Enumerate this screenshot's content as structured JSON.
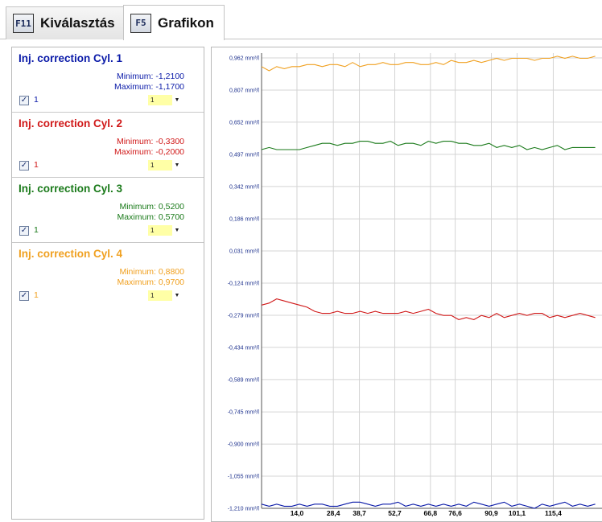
{
  "tabs": [
    {
      "key": "F11",
      "label": "Kiválasztás"
    },
    {
      "key": "F5",
      "label": "Grafikon"
    }
  ],
  "series_panel": [
    {
      "title": "Inj. correction Cyl. 1",
      "min_label": "Minimum: -1,2100",
      "max_label": "Maximum: -1,1700",
      "checked": true,
      "number": "1",
      "select_value": "1",
      "color": "#0a1aa8"
    },
    {
      "title": "Inj. correction Cyl. 2",
      "min_label": "Minimum: -0,3300",
      "max_label": "Maximum: -0,2000",
      "checked": true,
      "number": "1",
      "select_value": "1",
      "color": "#d01818"
    },
    {
      "title": "Inj. correction Cyl. 3",
      "min_label": "Minimum: 0,5200",
      "max_label": "Maximum: 0,5700",
      "checked": true,
      "number": "1",
      "select_value": "1",
      "color": "#1a7a1a"
    },
    {
      "title": "Inj. correction Cyl. 4",
      "min_label": "Minimum: 0,8800",
      "max_label": "Maximum: 0,9700",
      "checked": true,
      "number": "1",
      "select_value": "1",
      "color": "#f0a020"
    }
  ],
  "chart_data": {
    "type": "line",
    "title": "",
    "xlabel": "",
    "ylabel": "",
    "y_tick_labels": [
      "0,962 mm³/l",
      "0,807 mm³/l",
      "0,652 mm³/l",
      "0,497 mm³/l",
      "0,342 mm³/l",
      "0,186 mm³/l",
      "0,031 mm³/l",
      "-0,124 mm³/l",
      "-0,279 mm³/l",
      "-0,434 mm³/l",
      "-0,589 mm³/l",
      "-0,745 mm³/l",
      "-0,900 mm³/l",
      "-1,055 mm³/l",
      "-1,210 mm³/l"
    ],
    "y_ticks": [
      0.962,
      0.807,
      0.652,
      0.497,
      0.342,
      0.186,
      0.031,
      -0.124,
      -0.279,
      -0.434,
      -0.589,
      -0.745,
      -0.9,
      -1.055,
      -1.21
    ],
    "x_tick_labels": [
      "14,0",
      "28,4",
      "38,7",
      "52,7",
      "66,8",
      "76,6",
      "90,9",
      "101,1",
      "115,4"
    ],
    "x_ticks": [
      14.0,
      28.4,
      38.7,
      52.7,
      66.8,
      76.6,
      90.9,
      101.1,
      115.4
    ],
    "xlim": [
      0,
      135
    ],
    "ylim": [
      -1.21,
      0.962
    ],
    "grid": true,
    "series": [
      {
        "color": "#0a1aa8",
        "x": [
          0,
          3,
          6,
          9,
          12,
          15,
          18,
          21,
          24,
          27,
          30,
          33,
          36,
          39,
          42,
          45,
          48,
          51,
          54,
          57,
          60,
          63,
          66,
          69,
          72,
          75,
          78,
          81,
          84,
          87,
          90,
          93,
          96,
          99,
          102,
          105,
          108,
          111,
          114,
          117,
          120,
          123,
          126,
          129,
          132
        ],
        "y": [
          -1.19,
          -1.2,
          -1.19,
          -1.2,
          -1.2,
          -1.19,
          -1.2,
          -1.19,
          -1.19,
          -1.2,
          -1.2,
          -1.19,
          -1.18,
          -1.18,
          -1.19,
          -1.2,
          -1.19,
          -1.19,
          -1.18,
          -1.2,
          -1.19,
          -1.2,
          -1.19,
          -1.2,
          -1.19,
          -1.2,
          -1.19,
          -1.2,
          -1.18,
          -1.19,
          -1.2,
          -1.19,
          -1.18,
          -1.2,
          -1.19,
          -1.2,
          -1.21,
          -1.19,
          -1.2,
          -1.19,
          -1.18,
          -1.2,
          -1.19,
          -1.2,
          -1.19
        ]
      },
      {
        "color": "#d01818",
        "x": [
          0,
          3,
          6,
          9,
          12,
          15,
          18,
          21,
          24,
          27,
          30,
          33,
          36,
          39,
          42,
          45,
          48,
          51,
          54,
          57,
          60,
          63,
          66,
          69,
          72,
          75,
          78,
          81,
          84,
          87,
          90,
          93,
          96,
          99,
          102,
          105,
          108,
          111,
          114,
          117,
          120,
          123,
          126,
          129,
          132
        ],
        "y": [
          -0.23,
          -0.22,
          -0.2,
          -0.21,
          -0.22,
          -0.23,
          -0.24,
          -0.26,
          -0.27,
          -0.27,
          -0.26,
          -0.27,
          -0.27,
          -0.26,
          -0.27,
          -0.26,
          -0.27,
          -0.27,
          -0.27,
          -0.26,
          -0.27,
          -0.26,
          -0.25,
          -0.27,
          -0.28,
          -0.28,
          -0.3,
          -0.29,
          -0.3,
          -0.28,
          -0.29,
          -0.27,
          -0.29,
          -0.28,
          -0.27,
          -0.28,
          -0.27,
          -0.27,
          -0.29,
          -0.28,
          -0.29,
          -0.28,
          -0.27,
          -0.28,
          -0.29
        ]
      },
      {
        "color": "#1a7a1a",
        "x": [
          0,
          3,
          6,
          9,
          12,
          15,
          18,
          21,
          24,
          27,
          30,
          33,
          36,
          39,
          42,
          45,
          48,
          51,
          54,
          57,
          60,
          63,
          66,
          69,
          72,
          75,
          78,
          81,
          84,
          87,
          90,
          93,
          96,
          99,
          102,
          105,
          108,
          111,
          114,
          117,
          120,
          123,
          126,
          129,
          132
        ],
        "y": [
          0.52,
          0.53,
          0.52,
          0.52,
          0.52,
          0.52,
          0.53,
          0.54,
          0.55,
          0.55,
          0.54,
          0.55,
          0.55,
          0.56,
          0.56,
          0.55,
          0.55,
          0.56,
          0.54,
          0.55,
          0.55,
          0.54,
          0.56,
          0.55,
          0.56,
          0.56,
          0.55,
          0.55,
          0.54,
          0.54,
          0.55,
          0.53,
          0.54,
          0.53,
          0.54,
          0.52,
          0.53,
          0.52,
          0.53,
          0.54,
          0.52,
          0.53,
          0.53,
          0.53,
          0.53
        ]
      },
      {
        "color": "#f0a020",
        "x": [
          0,
          3,
          6,
          9,
          12,
          15,
          18,
          21,
          24,
          27,
          30,
          33,
          36,
          39,
          42,
          45,
          48,
          51,
          54,
          57,
          60,
          63,
          66,
          69,
          72,
          75,
          78,
          81,
          84,
          87,
          90,
          93,
          96,
          99,
          102,
          105,
          108,
          111,
          114,
          117,
          120,
          123,
          126,
          129,
          132
        ],
        "y": [
          0.92,
          0.9,
          0.92,
          0.91,
          0.92,
          0.92,
          0.93,
          0.93,
          0.92,
          0.93,
          0.93,
          0.92,
          0.94,
          0.92,
          0.93,
          0.93,
          0.94,
          0.93,
          0.93,
          0.94,
          0.94,
          0.93,
          0.93,
          0.94,
          0.93,
          0.95,
          0.94,
          0.94,
          0.95,
          0.94,
          0.95,
          0.96,
          0.95,
          0.96,
          0.96,
          0.96,
          0.95,
          0.96,
          0.96,
          0.97,
          0.96,
          0.97,
          0.96,
          0.96,
          0.97
        ]
      }
    ]
  }
}
